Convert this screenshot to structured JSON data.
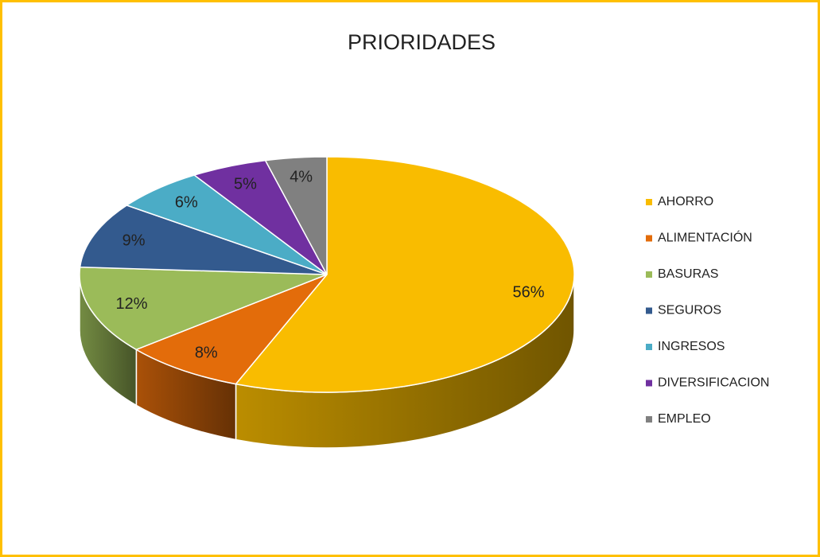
{
  "chart_data": {
    "type": "pie",
    "title": "PRIORIDADES",
    "categories": [
      "AHORRO",
      "ALIMENTACIÓN",
      "BASURAS",
      "SEGUROS",
      "INGRESOS",
      "DIVERSIFICACION",
      "EMPLEO"
    ],
    "values": [
      56,
      8,
      12,
      9,
      6,
      5,
      4
    ],
    "value_labels": [
      "56%",
      "8%",
      "12%",
      "9%",
      "6%",
      "5%",
      "4%"
    ],
    "colors": [
      "#F9BC00",
      "#E36C0A",
      "#9BBB59",
      "#335A8E",
      "#4BACC6",
      "#7030A0",
      "#808080"
    ],
    "legend": "right"
  }
}
